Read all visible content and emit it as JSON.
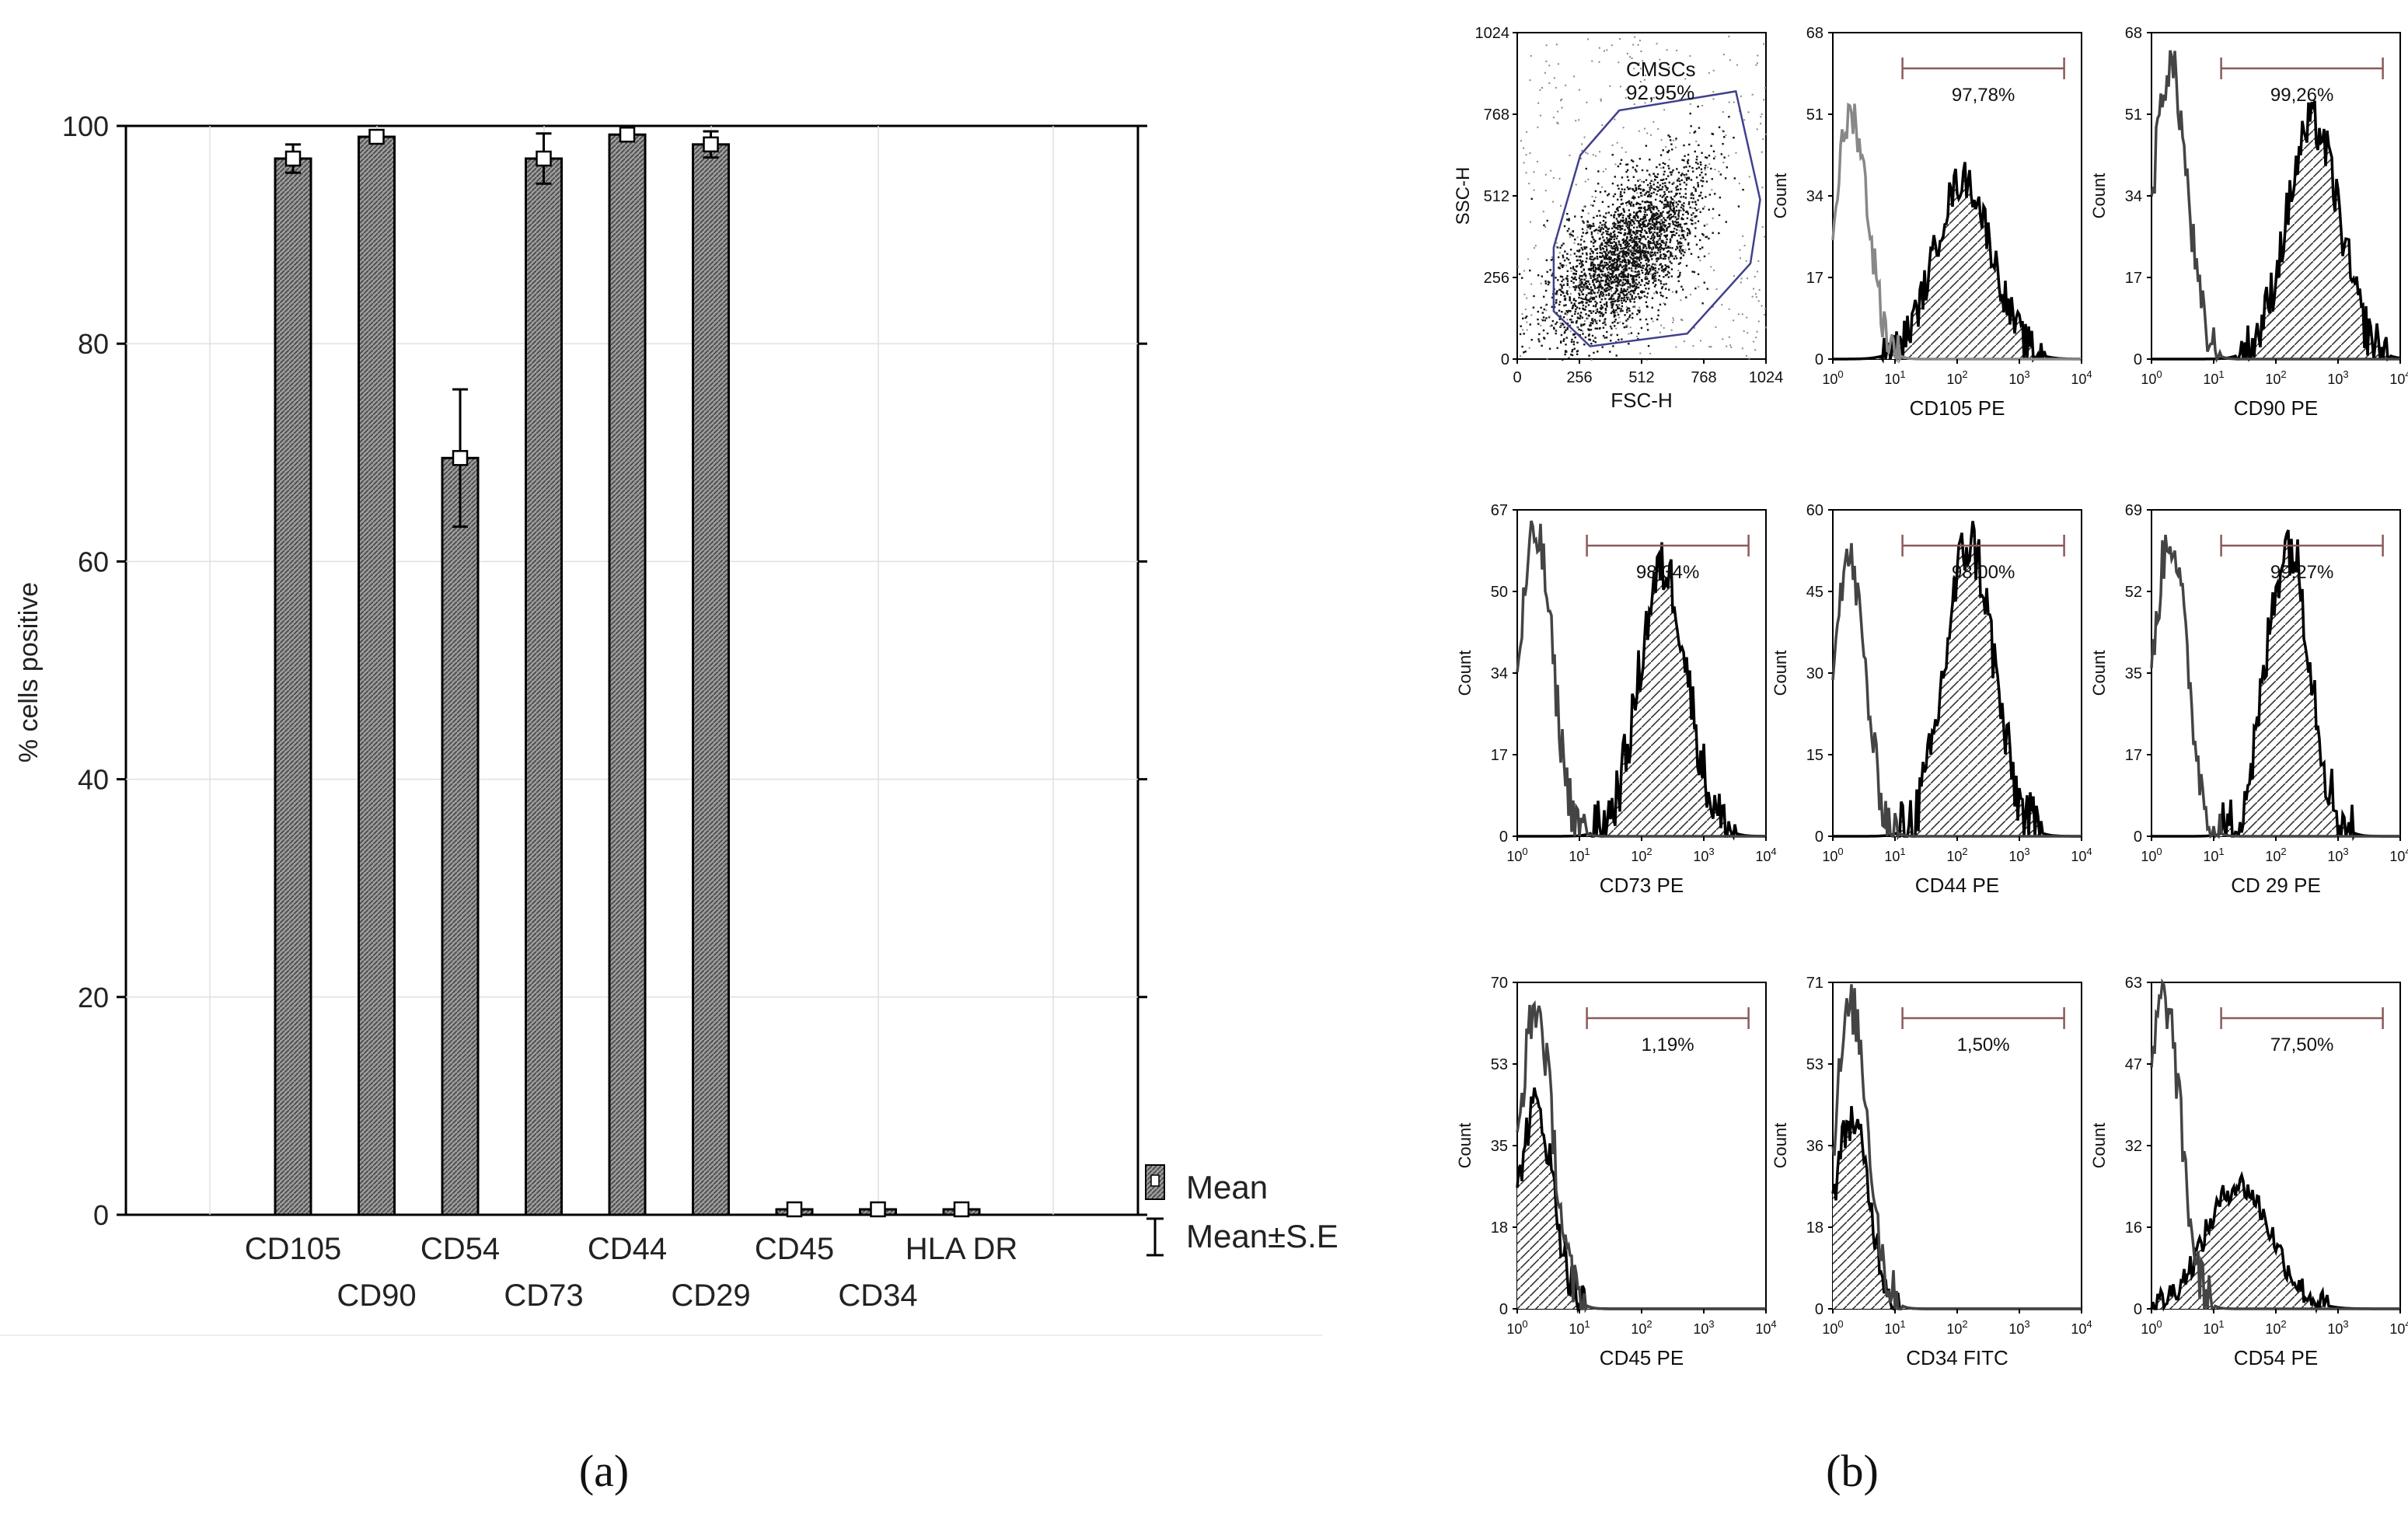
{
  "panel_labels": {
    "a": "(a)",
    "b": "(b)"
  },
  "colors": {
    "bar_fill": "#8c8c8c",
    "line": "#000000",
    "grid": "#e0e0e0",
    "gate": "#40408c",
    "pct_text": "#333333",
    "isotype": "#444444"
  },
  "chart_data": [
    {
      "type": "bar",
      "title": "",
      "xlabel": "",
      "ylabel": "% cells positive",
      "ylim": [
        0,
        100
      ],
      "yticks": [
        0,
        20,
        40,
        60,
        80,
        100
      ],
      "grid": true,
      "categories": [
        "CD105",
        "CD90",
        "CD54",
        "CD73",
        "CD44",
        "CD29",
        "CD45",
        "CD34",
        "HLA DR"
      ],
      "series": [
        {
          "name": "Mean",
          "values": [
            97.0,
            99.0,
            69.5,
            97.0,
            99.2,
            98.3,
            0.5,
            0.5,
            0.5
          ]
        }
      ],
      "error_high": [
        98.3,
        99.5,
        75.8,
        99.3,
        99.7,
        99.5,
        0.9,
        0.9,
        0.9
      ],
      "error_low": [
        95.7,
        98.5,
        63.2,
        94.7,
        98.7,
        97.1,
        0.1,
        0.1,
        0.1
      ],
      "legend": [
        "Mean",
        "Mean±S.E"
      ],
      "legend_position": "bottom-right"
    },
    {
      "type": "scatter",
      "xlabel": "FSC-H",
      "ylabel": "SSC-H",
      "xlim": [
        0,
        1024
      ],
      "ylim": [
        0,
        1024
      ],
      "xticks": [
        "0",
        "256",
        "512",
        "768",
        "1024"
      ],
      "yticks": [
        "0",
        "256",
        "512",
        "768",
        "1024"
      ],
      "gate_label": "CMSCs",
      "gate_value": "92,95%",
      "description": "dense cloud of events centered near FSC 450, SSC 350 enclosed in a polygonal gate"
    },
    {
      "type": "area",
      "xlabel": "CD105 PE",
      "ylabel": "Count",
      "ymax": "68",
      "yticks": [
        "0",
        "17",
        "34",
        "51",
        "68"
      ],
      "percent": "97,78%",
      "peak_log": 2.1,
      "iso_peak_log": 0.3,
      "iso_height": 0.75,
      "sample_height": 0.55,
      "width": 0.65,
      "iso_color": "gray"
    },
    {
      "type": "area",
      "xlabel": "CD90 PE",
      "ylabel": "Count",
      "ymax": "68",
      "yticks": [
        "0",
        "17",
        "34",
        "51",
        "68"
      ],
      "percent": "99,26%",
      "peak_log": 2.6,
      "iso_peak_log": 0.3,
      "iso_height": 0.9,
      "sample_height": 0.72,
      "width": 0.6,
      "iso_color": "dark"
    },
    {
      "type": "area",
      "xlabel": "CD73 PE",
      "ylabel": "Count",
      "ymax": "67",
      "yticks": [
        "0",
        "17",
        "34",
        "50",
        "67"
      ],
      "percent": "98,34%",
      "peak_log": 2.35,
      "iso_peak_log": 0.3,
      "iso_height": 0.92,
      "sample_height": 0.82,
      "width": 0.55,
      "iso_color": "dark"
    },
    {
      "type": "area",
      "xlabel": "CD44 PE",
      "ylabel": "Count",
      "ymax": "60",
      "yticks": [
        "0",
        "15",
        "30",
        "45",
        "60"
      ],
      "percent": "98,00%",
      "peak_log": 2.2,
      "iso_peak_log": 0.25,
      "iso_height": 0.85,
      "sample_height": 0.9,
      "width": 0.55,
      "iso_color": "dark"
    },
    {
      "type": "area",
      "xlabel": "CD 29 PE",
      "ylabel": "Count",
      "ymax": "69",
      "yticks": [
        "0",
        "17",
        "35",
        "52",
        "69"
      ],
      "percent": "99,27%",
      "peak_log": 2.2,
      "iso_peak_log": 0.3,
      "iso_height": 0.92,
      "sample_height": 0.9,
      "width": 0.5,
      "iso_color": "dark"
    },
    {
      "type": "area",
      "xlabel": "CD45 PE",
      "ylabel": "Count",
      "ymax": "70",
      "yticks": [
        "0",
        "18",
        "35",
        "53",
        "70"
      ],
      "percent": "1,19%",
      "peak_log": 0.3,
      "iso_peak_log": 0.3,
      "iso_height": 0.92,
      "sample_height": 0.62,
      "width": 0.4,
      "iso_color": "dark"
    },
    {
      "type": "area",
      "xlabel": "CD34 FITC",
      "ylabel": "Count",
      "ymax": "71",
      "yticks": [
        "0",
        "18",
        "36",
        "53",
        "71"
      ],
      "percent": "1,50%",
      "peak_log": 0.3,
      "iso_peak_log": 0.3,
      "iso_height": 0.92,
      "sample_height": 0.58,
      "width": 0.4,
      "iso_color": "dark"
    },
    {
      "type": "area",
      "xlabel": "CD54 PE",
      "ylabel": "Count",
      "ymax": "63",
      "yticks": [
        "0",
        "16",
        "32",
        "47",
        "63"
      ],
      "percent": "77,50%",
      "peak_log": 1.4,
      "iso_peak_log": 0.2,
      "iso_height": 0.95,
      "sample_height": 0.38,
      "width": 0.75,
      "iso_color": "dark"
    }
  ]
}
